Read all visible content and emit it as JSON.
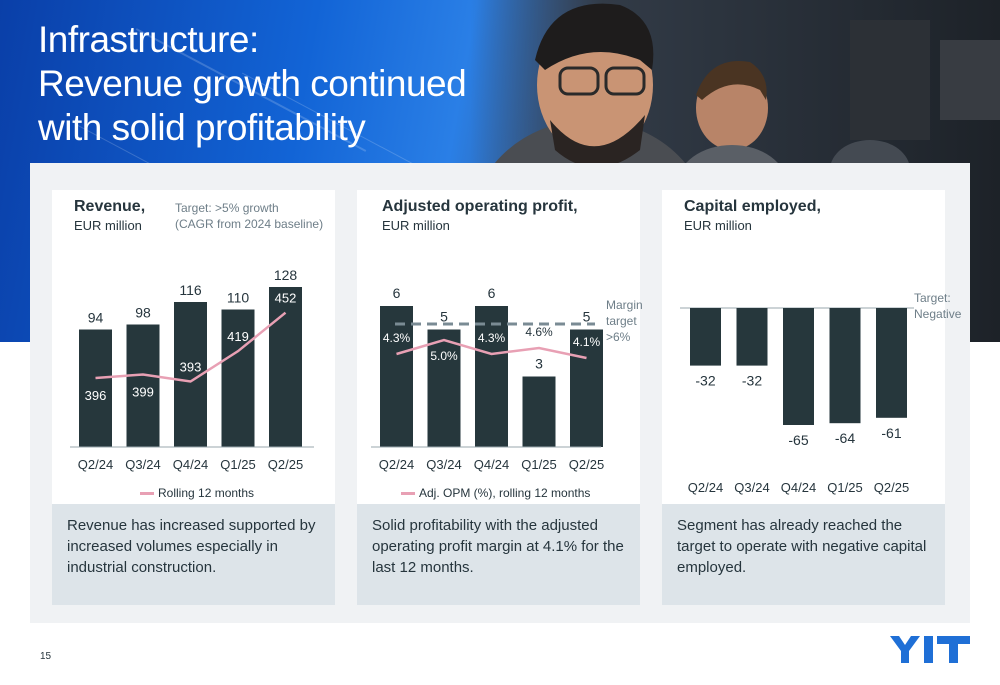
{
  "slide": {
    "title_lines": [
      "Infrastructure:",
      "Revenue growth continued",
      "with solid profitability"
    ],
    "page_number": "15",
    "logo_text": "YIT"
  },
  "colors": {
    "bar": "#26373c",
    "line": "#e8a0b4",
    "target_line": "#7a8b94",
    "card_footer": "#dde4e9",
    "brand_blue": "#1f6fd6"
  },
  "cards": [
    {
      "title": "Revenue,",
      "subtitle": "EUR million",
      "target_lines": [
        "Target: >5% growth",
        "(CAGR from 2024 baseline)"
      ],
      "legend": "Rolling 12 months",
      "footer": "Revenue has increased supported by increased volumes especially in industrial construction."
    },
    {
      "title": "Adjusted operating profit,",
      "subtitle": "EUR million",
      "target_lines": [
        "Margin",
        "target",
        ">6%"
      ],
      "legend": "Adj. OPM (%), rolling 12 months",
      "footer": "Solid profitability with the adjusted operating profit margin at 4.1% for the last 12 months."
    },
    {
      "title": "Capital employed,",
      "subtitle": "EUR million",
      "target_lines": [
        "Target:",
        "Negative"
      ],
      "legend": "",
      "footer": "Segment has already reached the target to operate with negative capital employed."
    }
  ],
  "chart_data": [
    {
      "type": "bar",
      "title": "Revenue,",
      "subtitle": "EUR million",
      "categories": [
        "Q2/24",
        "Q3/24",
        "Q4/24",
        "Q1/25",
        "Q2/25"
      ],
      "series": [
        {
          "name": "",
          "kind": "bar",
          "values": [
            94,
            98,
            116,
            110,
            128
          ]
        },
        {
          "name": "Rolling 12 months",
          "kind": "line",
          "values": [
            396,
            399,
            393,
            419,
            452
          ]
        }
      ],
      "ylim": [
        0,
        140
      ],
      "grid": false
    },
    {
      "type": "bar",
      "title": "Adjusted operating profit,",
      "subtitle": "EUR million",
      "categories": [
        "Q2/24",
        "Q3/24",
        "Q4/24",
        "Q1/25",
        "Q2/25"
      ],
      "series": [
        {
          "name": "",
          "kind": "bar",
          "values": [
            6,
            5,
            6,
            3,
            5
          ]
        },
        {
          "name": "Adj. OPM (%), rolling 12 months",
          "kind": "line",
          "values": [
            4.3,
            5.0,
            4.3,
            4.6,
            4.1
          ],
          "labels": [
            "4.3%",
            "5.0%",
            "4.3%",
            "4.6%",
            "4.1%"
          ]
        }
      ],
      "target": {
        "value": 6,
        "unit": "%"
      },
      "ylim": [
        0,
        7
      ],
      "grid": false
    },
    {
      "type": "bar",
      "title": "Capital employed,",
      "subtitle": "EUR million",
      "categories": [
        "Q2/24",
        "Q3/24",
        "Q4/24",
        "Q1/25",
        "Q2/25"
      ],
      "series": [
        {
          "name": "",
          "kind": "bar",
          "values": [
            -32,
            -32,
            -65,
            -64,
            -61
          ]
        }
      ],
      "target": "Negative",
      "ylim": [
        -70,
        0
      ],
      "grid": false
    }
  ]
}
